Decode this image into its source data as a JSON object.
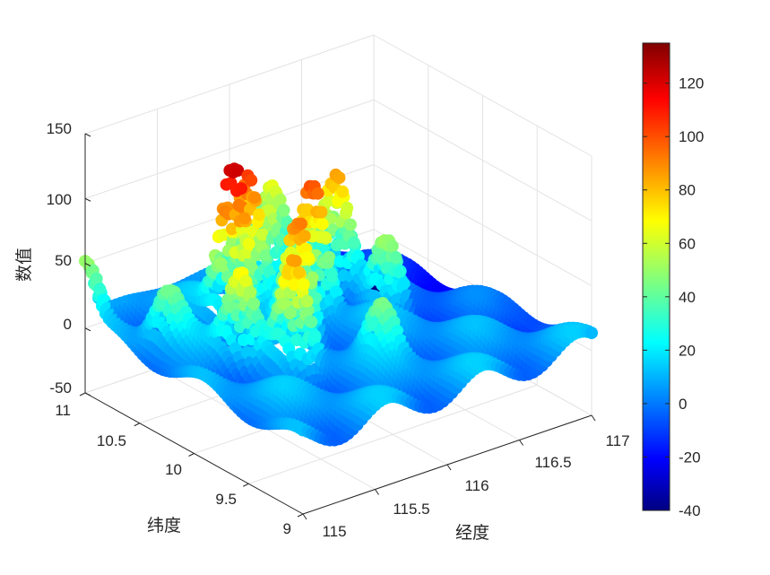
{
  "chart_data": {
    "type": "scatter3d",
    "title": "",
    "xlabel": "经度",
    "ylabel": "纬度",
    "zlabel": "数值",
    "xlim": [
      115,
      117
    ],
    "ylim": [
      9,
      11
    ],
    "zlim": [
      -50,
      150
    ],
    "x_ticks": [
      "115",
      "115.5",
      "116",
      "116.5",
      "117"
    ],
    "y_ticks": [
      "9",
      "9.5",
      "10",
      "10.5",
      "11"
    ],
    "z_ticks": [
      "-50",
      "0",
      "50",
      "100",
      "150"
    ],
    "grid": true,
    "colormap": "jet",
    "colorbar": {
      "position": "right",
      "range": [
        -40,
        135
      ],
      "ticks": [
        "-40",
        "-20",
        "0",
        "20",
        "40",
        "60",
        "80",
        "100",
        "120"
      ]
    },
    "surface_peaks": [
      {
        "x": 115.64,
        "y": 10.48,
        "value": 133
      },
      {
        "x": 115.84,
        "y": 10.62,
        "value": 110
      },
      {
        "x": 115.8,
        "y": 10.1,
        "value": 97
      },
      {
        "x": 116.08,
        "y": 10.34,
        "value": 105
      },
      {
        "x": 116.4,
        "y": 10.55,
        "value": 92
      },
      {
        "x": 115.4,
        "y": 10.1,
        "value": 72
      },
      {
        "x": 115.56,
        "y": 9.82,
        "value": 80
      },
      {
        "x": 116.08,
        "y": 10.76,
        "value": 62
      },
      {
        "x": 116.25,
        "y": 10.95,
        "value": 65
      },
      {
        "x": 116.45,
        "y": 10.15,
        "value": 58
      },
      {
        "x": 115.2,
        "y": 10.5,
        "value": 45
      },
      {
        "x": 116.0,
        "y": 9.6,
        "value": 45
      },
      {
        "x": 115.0,
        "y": 11.0,
        "value": 55
      },
      {
        "x": 117.0,
        "y": 11.0,
        "value": -30
      }
    ]
  }
}
